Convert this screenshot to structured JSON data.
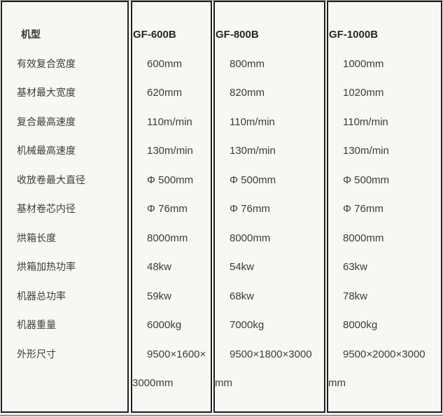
{
  "table": {
    "header_column_label": "机型",
    "columns": [
      "GF-600B",
      "GF-800B",
      "GF-1000B"
    ],
    "rows": [
      {
        "label": "有效复合宽度",
        "values": [
          "600mm",
          "800mm",
          "1000mm"
        ]
      },
      {
        "label": "基材最大宽度",
        "values": [
          "620mm",
          "820mm",
          "1020mm"
        ]
      },
      {
        "label": "复合最高速度",
        "values": [
          "110m/min",
          "110m/min",
          "110m/min"
        ]
      },
      {
        "label": "机械最高速度",
        "values": [
          "130m/min",
          "130m/min",
          "130m/min"
        ]
      },
      {
        "label": "收放卷最大直径",
        "values": [
          "Φ 500mm",
          "Φ 500mm",
          "Φ 500mm"
        ]
      },
      {
        "label": "基材卷芯内径",
        "values": [
          "Φ 76mm",
          "Φ 76mm",
          "Φ 76mm"
        ]
      },
      {
        "label": "烘箱长度",
        "values": [
          "8000mm",
          "8000mm",
          "8000mm"
        ]
      },
      {
        "label": "烘箱加热功率",
        "values": [
          "48kw",
          "54kw",
          "63kw"
        ]
      },
      {
        "label": "机器总功率",
        "values": [
          "59kw",
          "68kw",
          "78kw"
        ]
      },
      {
        "label": "机器重量",
        "values": [
          "6000kg",
          "7000kg",
          "8000kg"
        ]
      },
      {
        "label": "外形尺寸",
        "values": [
          "9500×1600×\n3000mm",
          "9500×1800×3000\nmm",
          "9500×2000×3000\nmm"
        ]
      }
    ],
    "colors": {
      "border": "#1f1f1f",
      "cell_background": "#f7f7f6",
      "text": "#3c3c3c",
      "header_text": "#262626"
    }
  }
}
